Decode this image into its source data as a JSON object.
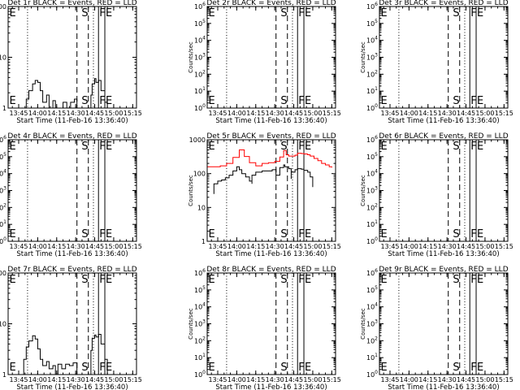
{
  "chart_data": [
    {
      "type": "line",
      "title": "Det 1r BLACK = Events, RED = LLD",
      "xlabel": "Start Time (11-Feb-16 13:36:40)",
      "ylabel": "Counts/sec",
      "x_ticks": [
        "13:45",
        "14:00",
        "14:15",
        "14:30",
        "14:45",
        "15:00",
        "15:15"
      ],
      "xlim": [
        "13:36:40",
        "15:18:00"
      ],
      "y_scale": "log",
      "ylim": [
        1,
        100
      ],
      "y_ticks": [
        "1",
        "10",
        "100"
      ],
      "markers": [
        {
          "label": "E",
          "time": "13:37"
        },
        {
          "label": "S",
          "time": "14:34"
        },
        {
          "label": "F",
          "time": "14:48"
        },
        {
          "label": "E",
          "time": "14:53"
        }
      ],
      "dashed_lines": [
        "14:31",
        "14:40"
      ],
      "solid_lines": [
        "14:48",
        "14:53"
      ],
      "dotted_lines": [
        "13:52",
        "14:44"
      ],
      "series": [
        {
          "color": "#000000",
          "x": [
            "13:49",
            "13:51",
            "13:53",
            "13:56",
            "13:58",
            "14:00",
            "14:02",
            "14:04",
            "14:07",
            "14:09",
            "14:12",
            "14:14",
            "14:17",
            "14:20",
            "14:23",
            "14:26",
            "14:29",
            "14:31",
            "14:42",
            "14:43",
            "14:45",
            "14:46",
            "14:48",
            "14:50",
            "14:53",
            "14:55"
          ],
          "y": [
            1.0,
            1.5,
            2.2,
            3.0,
            3.5,
            3.2,
            2.2,
            1.3,
            1.8,
            1.0,
            1.4,
            1.0,
            1.0,
            1.3,
            1.0,
            1.3,
            1.5,
            1.0,
            1.8,
            3.0,
            3.8,
            3.2,
            3.5,
            2.2,
            1.3,
            1.0
          ]
        }
      ]
    },
    {
      "type": "line",
      "title": "Det 2r BLACK = Events, RED = LLD",
      "xlabel": "Start Time (11-Feb-16 13:36:40)",
      "ylabel": "Counts/sec",
      "x_ticks": [
        "13:45",
        "14:00",
        "14:15",
        "14:30",
        "14:45",
        "15:00",
        "15:15"
      ],
      "xlim": [
        "13:36:40",
        "15:18:00"
      ],
      "y_scale": "log",
      "ylim": [
        1,
        1000000
      ],
      "y_ticks": [
        "10^0",
        "10^1",
        "10^2",
        "10^3",
        "10^4",
        "10^5",
        "10^6"
      ],
      "markers": [
        {
          "label": "E",
          "time": "13:37"
        },
        {
          "label": "S",
          "time": "14:34"
        },
        {
          "label": "F",
          "time": "14:48"
        },
        {
          "label": "E",
          "time": "14:53"
        }
      ],
      "dashed_lines": [
        "14:31",
        "14:40"
      ],
      "solid_lines": [
        "14:48",
        "14:53"
      ],
      "dotted_lines": [
        "13:52",
        "14:44"
      ],
      "series": []
    },
    {
      "type": "line",
      "title": "Det 3r BLACK = Events, RED = LLD",
      "xlabel": "Start Time (11-Feb-16 13:36:40)",
      "ylabel": "Counts/sec",
      "x_ticks": [
        "13:45",
        "14:00",
        "14:15",
        "14:30",
        "14:45",
        "15:00",
        "15:15"
      ],
      "xlim": [
        "13:36:40",
        "15:18:00"
      ],
      "y_scale": "log",
      "ylim": [
        1,
        1000000
      ],
      "y_ticks": [
        "10^0",
        "10^1",
        "10^2",
        "10^3",
        "10^4",
        "10^5",
        "10^6"
      ],
      "markers": [
        {
          "label": "E",
          "time": "13:37"
        },
        {
          "label": "S",
          "time": "14:34"
        },
        {
          "label": "F",
          "time": "14:48"
        },
        {
          "label": "E",
          "time": "14:53"
        }
      ],
      "dashed_lines": [
        "14:31",
        "14:40"
      ],
      "solid_lines": [
        "14:48",
        "14:53"
      ],
      "dotted_lines": [
        "13:52",
        "14:44"
      ],
      "series": []
    },
    {
      "type": "line",
      "title": "Det 4r BLACK = Events, RED = LLD",
      "xlabel": "Start Time (11-Feb-16 13:36:40)",
      "ylabel": "Counts/sec",
      "x_ticks": [
        "13:45",
        "14:00",
        "14:15",
        "14:30",
        "14:45",
        "15:00",
        "15:15"
      ],
      "xlim": [
        "13:36:40",
        "15:18:00"
      ],
      "y_scale": "log",
      "ylim": [
        1,
        1000000
      ],
      "y_ticks": [
        "10^0",
        "10^1",
        "10^2",
        "10^3",
        "10^4",
        "10^5",
        "10^6"
      ],
      "markers": [
        {
          "label": "E",
          "time": "13:37"
        },
        {
          "label": "S",
          "time": "14:34"
        },
        {
          "label": "F",
          "time": "14:48"
        },
        {
          "label": "E",
          "time": "14:53"
        }
      ],
      "dashed_lines": [
        "14:31",
        "14:40"
      ],
      "solid_lines": [
        "14:48",
        "14:53"
      ],
      "dotted_lines": [
        "13:52",
        "14:44"
      ],
      "series": []
    },
    {
      "type": "line",
      "title": "Det 5r BLACK = Events, RED = LLD",
      "xlabel": "Start Time (11-Feb-16 13:36:40)",
      "ylabel": "Counts/sec",
      "x_ticks": [
        "13:45",
        "14:00",
        "14:15",
        "14:30",
        "14:45",
        "15:00",
        "15:15"
      ],
      "xlim": [
        "13:36:40",
        "15:18:00"
      ],
      "y_scale": "log",
      "ylim": [
        1,
        1000
      ],
      "y_ticks": [
        "1",
        "10",
        "100",
        "1000"
      ],
      "markers": [
        {
          "label": "E",
          "time": "13:37"
        },
        {
          "label": "S",
          "time": "14:34"
        },
        {
          "label": "F",
          "time": "14:48"
        },
        {
          "label": "E",
          "time": "14:53"
        }
      ],
      "dashed_lines": [
        "14:31",
        "14:40"
      ],
      "solid_lines": [
        "14:48",
        "14:53"
      ],
      "dotted_lines": [
        "13:52",
        "14:44"
      ],
      "series": [
        {
          "color": "#ff0000",
          "x": [
            "13:37",
            "13:42",
            "13:47",
            "13:52",
            "13:57",
            "14:02",
            "14:06",
            "14:10",
            "14:15",
            "14:20",
            "14:25",
            "14:30",
            "14:34",
            "14:37",
            "14:39",
            "14:41",
            "14:43",
            "14:46",
            "14:48",
            "14:51",
            "14:53",
            "14:56",
            "14:58",
            "15:01",
            "15:04",
            "15:07",
            "15:10",
            "15:13",
            "15:15"
          ],
          "y": [
            160,
            160,
            170,
            200,
            300,
            500,
            320,
            210,
            170,
            200,
            210,
            230,
            310,
            480,
            360,
            330,
            330,
            350,
            400,
            390,
            380,
            360,
            330,
            280,
            240,
            200,
            180,
            160,
            150
          ]
        },
        {
          "color": "#000000",
          "x": [
            "13:42",
            "13:42",
            "13:45",
            "13:48",
            "13:51",
            "13:54",
            "13:57",
            "14:00",
            "14:02",
            "14:04",
            "14:07",
            "14:10",
            "14:12",
            "14:12",
            "14:15",
            "14:20",
            "14:25",
            "14:28",
            "14:31",
            "14:31",
            "14:34",
            "14:37",
            "14:38",
            "14:41",
            "14:43",
            "14:43",
            "14:46",
            "14:48",
            "14:51",
            "14:53",
            "14:56",
            "14:58",
            "15:00"
          ],
          "y": [
            25,
            50,
            60,
            65,
            75,
            90,
            120,
            160,
            130,
            100,
            80,
            60,
            50,
            90,
            110,
            120,
            120,
            130,
            140,
            90,
            150,
            180,
            160,
            140,
            70,
            110,
            130,
            140,
            135,
            125,
            110,
            80,
            40
          ]
        }
      ]
    },
    {
      "type": "line",
      "title": "Det 6r BLACK = Events, RED = LLD",
      "xlabel": "Start Time (11-Feb-16 13:36:40)",
      "ylabel": "Counts/sec",
      "x_ticks": [
        "13:45",
        "14:00",
        "14:15",
        "14:30",
        "14:45",
        "15:00",
        "15:15"
      ],
      "xlim": [
        "13:36:40",
        "15:18:00"
      ],
      "y_scale": "log",
      "ylim": [
        1,
        1000000
      ],
      "y_ticks": [
        "10^0",
        "10^1",
        "10^2",
        "10^3",
        "10^4",
        "10^5",
        "10^6"
      ],
      "markers": [
        {
          "label": "E",
          "time": "13:37"
        },
        {
          "label": "S",
          "time": "14:34"
        },
        {
          "label": "F",
          "time": "14:48"
        },
        {
          "label": "E",
          "time": "14:53"
        }
      ],
      "dashed_lines": [
        "14:31",
        "14:40"
      ],
      "solid_lines": [
        "14:48",
        "14:53"
      ],
      "dotted_lines": [
        "13:52",
        "14:44"
      ],
      "series": []
    },
    {
      "type": "line",
      "title": "Det 7r BLACK = Events, RED = LLD",
      "xlabel": "Start Time (11-Feb-16 13:36:40)",
      "ylabel": "Counts/sec",
      "x_ticks": [
        "13:45",
        "14:00",
        "14:15",
        "14:30",
        "14:45",
        "15:00",
        "15:15"
      ],
      "xlim": [
        "13:36:40",
        "15:18:00"
      ],
      "y_scale": "log",
      "ylim": [
        1,
        100
      ],
      "y_ticks": [
        "1",
        "10",
        "100"
      ],
      "markers": [
        {
          "label": "E",
          "time": "13:37"
        },
        {
          "label": "S",
          "time": "14:34"
        },
        {
          "label": "F",
          "time": "14:48"
        },
        {
          "label": "E",
          "time": "14:53"
        }
      ],
      "dashed_lines": [
        "14:31",
        "14:40"
      ],
      "solid_lines": [
        "14:48",
        "14:53"
      ],
      "dotted_lines": [
        "13:52",
        "14:44"
      ],
      "series": [
        {
          "color": "#000000",
          "x": [
            "13:47",
            "13:49",
            "13:51",
            "13:53",
            "13:56",
            "13:58",
            "14:00",
            "14:02",
            "14:04",
            "14:07",
            "14:09",
            "14:12",
            "14:14",
            "14:16",
            "14:19",
            "14:22",
            "14:25",
            "14:28",
            "14:31",
            "14:42",
            "14:43",
            "14:45",
            "14:46",
            "14:48",
            "14:50",
            "14:53",
            "14:55"
          ],
          "y": [
            1.0,
            2.0,
            3.5,
            4.6,
            5.8,
            5.0,
            3.2,
            2.0,
            1.5,
            1.8,
            1.3,
            1.5,
            1.0,
            1.6,
            1.3,
            1.6,
            1.5,
            1.7,
            1.0,
            3.0,
            5.2,
            6.0,
            5.5,
            6.2,
            4.0,
            2.0,
            1.0
          ]
        }
      ]
    },
    {
      "type": "line",
      "title": "Det 8r BLACK = Events, RED = LLD",
      "xlabel": "Start Time (11-Feb-16 13:36:40)",
      "ylabel": "Counts/sec",
      "x_ticks": [
        "13:45",
        "14:00",
        "14:15",
        "14:30",
        "14:45",
        "15:00",
        "15:15"
      ],
      "xlim": [
        "13:36:40",
        "15:18:00"
      ],
      "y_scale": "log",
      "ylim": [
        1,
        1000000
      ],
      "y_ticks": [
        "10^0",
        "10^1",
        "10^2",
        "10^3",
        "10^4",
        "10^5",
        "10^6"
      ],
      "markers": [
        {
          "label": "E",
          "time": "13:37"
        },
        {
          "label": "S",
          "time": "14:34"
        },
        {
          "label": "F",
          "time": "14:48"
        },
        {
          "label": "E",
          "time": "14:53"
        }
      ],
      "dashed_lines": [
        "14:31",
        "14:40"
      ],
      "solid_lines": [
        "14:48",
        "14:53"
      ],
      "dotted_lines": [
        "13:52",
        "14:44"
      ],
      "series": []
    },
    {
      "type": "line",
      "title": "Det 9r BLACK = Events, RED = LLD",
      "xlabel": "Start Time (11-Feb-16 13:36:40)",
      "ylabel": "Counts/sec",
      "x_ticks": [
        "13:45",
        "14:00",
        "14:15",
        "14:30",
        "14:45",
        "15:00",
        "15:15"
      ],
      "xlim": [
        "13:36:40",
        "15:18:00"
      ],
      "y_scale": "log",
      "ylim": [
        1,
        1000000
      ],
      "y_ticks": [
        "10^0",
        "10^1",
        "10^2",
        "10^3",
        "10^4",
        "10^5",
        "10^6"
      ],
      "markers": [
        {
          "label": "E",
          "time": "13:37"
        },
        {
          "label": "S",
          "time": "14:34"
        },
        {
          "label": "F",
          "time": "14:48"
        },
        {
          "label": "E",
          "time": "14:53"
        }
      ],
      "dashed_lines": [
        "14:31",
        "14:40"
      ],
      "solid_lines": [
        "14:48",
        "14:53"
      ],
      "dotted_lines": [
        "13:52",
        "14:44"
      ],
      "series": []
    }
  ]
}
